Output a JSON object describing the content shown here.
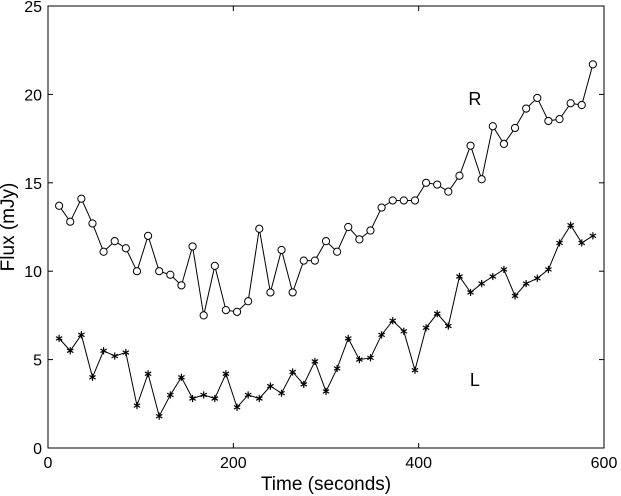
{
  "chart_data": {
    "type": "line",
    "title": "",
    "xlabel": "Time (seconds)",
    "ylabel": "Flux (mJy)",
    "xlim": [
      0,
      600
    ],
    "ylim": [
      0,
      25
    ],
    "xticks": [
      0,
      200,
      400,
      600
    ],
    "yticks": [
      0,
      5,
      10,
      15,
      20,
      25
    ],
    "grid": false,
    "x": [
      12,
      24,
      36,
      48,
      60,
      72,
      84,
      96,
      108,
      120,
      132,
      144,
      156,
      168,
      180,
      192,
      204,
      216,
      228,
      240,
      252,
      264,
      276,
      288,
      300,
      312,
      324,
      336,
      348,
      360,
      372,
      384,
      396,
      408,
      420,
      432,
      444,
      456,
      468,
      480,
      492,
      504,
      516,
      528,
      540,
      552,
      564,
      576,
      588
    ],
    "series": [
      {
        "name": "R",
        "marker": "circle",
        "values": [
          13.7,
          12.8,
          14.1,
          12.7,
          11.1,
          11.7,
          11.3,
          10.0,
          12.0,
          10.0,
          9.8,
          9.2,
          11.4,
          7.5,
          10.3,
          7.8,
          7.7,
          8.3,
          12.4,
          8.8,
          11.2,
          8.8,
          10.6,
          10.6,
          11.7,
          11.1,
          12.5,
          11.8,
          12.3,
          13.6,
          14.0,
          14.0,
          14.0,
          15.0,
          14.9,
          14.5,
          15.4,
          17.1,
          15.2,
          18.2,
          17.2,
          18.1,
          19.2,
          19.8,
          18.5,
          18.6,
          19.5,
          19.4,
          21.7
        ],
        "label_text": "R",
        "label_at": [
          452,
          19.8
        ]
      },
      {
        "name": "L",
        "marker": "asterisk",
        "values": [
          6.2,
          5.5,
          6.4,
          4.0,
          5.5,
          5.2,
          5.4,
          2.4,
          4.2,
          1.8,
          3.0,
          4.0,
          2.8,
          3.0,
          2.8,
          4.2,
          2.3,
          3.0,
          2.8,
          3.5,
          3.1,
          4.3,
          3.6,
          4.9,
          3.2,
          4.5,
          6.2,
          5.0,
          5.1,
          6.4,
          7.2,
          6.6,
          4.4,
          6.8,
          7.6,
          6.9,
          9.7,
          8.8,
          9.3,
          9.7,
          10.1,
          8.6,
          9.3,
          9.6,
          10.1,
          11.6,
          12.6,
          11.6,
          12.0
        ],
        "label_text": "L",
        "label_at": [
          452,
          3.9
        ]
      }
    ]
  }
}
